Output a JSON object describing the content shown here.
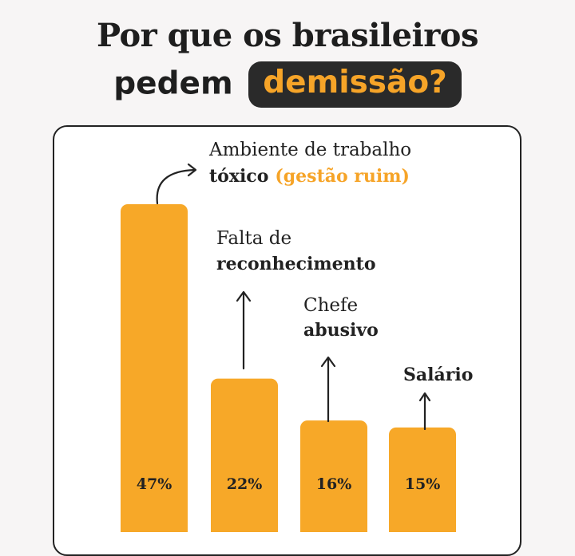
{
  "title": {
    "line1": "Por que os brasileiros",
    "line2_plain": "pedem",
    "line2_highlight": "demissão?"
  },
  "colors": {
    "bar": "#f7a828",
    "accent_text": "#f6a428",
    "highlight_bg": "#2a2a2a",
    "text": "#222222"
  },
  "chart_data": {
    "type": "bar",
    "categories": [
      "Ambiente de trabalho tóxico (gestão ruim)",
      "Falta de reconhecimento",
      "Chefe abusivo",
      "Salário"
    ],
    "values": [
      47,
      22,
      16,
      15
    ],
    "value_labels": [
      "47%",
      "22%",
      "16%",
      "15%"
    ],
    "ylim": [
      0,
      50
    ],
    "grid": false,
    "legend": "none",
    "annotations": [
      {
        "light": "Ambiente de trabalho",
        "bold": "tóxico",
        "accent": "(gestão ruim)"
      },
      {
        "light": "Falta de",
        "bold": "reconhecimento"
      },
      {
        "light": "Chefe",
        "bold": "abusivo"
      },
      {
        "light": "",
        "bold": "Salário"
      }
    ]
  }
}
